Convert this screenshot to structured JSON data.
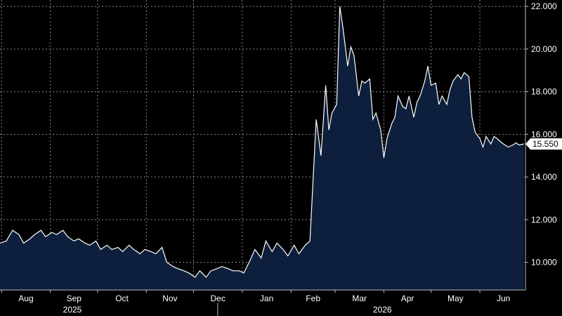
{
  "chart_data": {
    "type": "area",
    "title": "",
    "xlabel": "",
    "ylabel": "",
    "ylim": [
      8.7,
      22.3
    ],
    "yticks": [
      10.0,
      12.0,
      14.0,
      16.0,
      18.0,
      20.0,
      22.0
    ],
    "ytick_labels": [
      "10.000",
      "12.000",
      "14.000",
      "16.000",
      "18.000",
      "20.000",
      "22.000"
    ],
    "xlim": [
      "2025-07-31",
      "2026-06-30"
    ],
    "months": [
      {
        "label": "Aug",
        "date": "2025-08-01"
      },
      {
        "label": "Sep",
        "date": "2025-09-01"
      },
      {
        "label": "Oct",
        "date": "2025-10-01"
      },
      {
        "label": "Nov",
        "date": "2025-11-01"
      },
      {
        "label": "Dec",
        "date": "2025-12-01"
      },
      {
        "label": "Jan",
        "date": "2026-01-01"
      },
      {
        "label": "Feb",
        "date": "2026-02-01"
      },
      {
        "label": "Mar",
        "date": "2026-03-01"
      },
      {
        "label": "Apr",
        "date": "2026-04-01"
      },
      {
        "label": "May",
        "date": "2026-05-01"
      },
      {
        "label": "Jun",
        "date": "2026-06-01"
      }
    ],
    "years": [
      {
        "label": "2025",
        "date": "2025-09-15"
      },
      {
        "label": "2026",
        "date": "2026-03-31"
      }
    ],
    "year_divider": "2026-01-01",
    "grid": true,
    "last_value": 15.55,
    "last_label": "15.550",
    "colors": {
      "background": "#000000",
      "fill": "#0d1f3c",
      "line": "#ffffff",
      "grid": "#888888",
      "label_bg": "#ffffff"
    },
    "series": [
      {
        "x": [
          "2025-07-31",
          "2025-08-04",
          "2025-08-08",
          "2025-08-12",
          "2025-08-15",
          "2025-08-19",
          "2025-08-22",
          "2025-08-26",
          "2025-08-29",
          "2025-09-02",
          "2025-09-05",
          "2025-09-09",
          "2025-09-12",
          "2025-09-16",
          "2025-09-19",
          "2025-09-23",
          "2025-09-26",
          "2025-09-30",
          "2025-10-03",
          "2025-10-07",
          "2025-10-10",
          "2025-10-14",
          "2025-10-17",
          "2025-10-21",
          "2025-10-24",
          "2025-10-28",
          "2025-10-31",
          "2025-11-04",
          "2025-11-07",
          "2025-11-11",
          "2025-11-14",
          "2025-11-18",
          "2025-11-21",
          "2025-11-25",
          "2025-11-28",
          "2025-12-02",
          "2025-12-05",
          "2025-12-09",
          "2025-12-12",
          "2025-12-16",
          "2025-12-19",
          "2025-12-23",
          "2025-12-26",
          "2025-12-30",
          "2026-01-02",
          "2026-01-06",
          "2026-01-09",
          "2026-01-13",
          "2026-01-16",
          "2026-01-20",
          "2026-01-23",
          "2026-01-27",
          "2026-01-30",
          "2026-02-03",
          "2026-02-06",
          "2026-02-10",
          "2026-02-13",
          "2026-02-17",
          "2026-02-20",
          "2026-02-23",
          "2026-02-25",
          "2026-02-27",
          "2026-03-02",
          "2026-03-04",
          "2026-03-06",
          "2026-03-09",
          "2026-03-11",
          "2026-03-13",
          "2026-03-16",
          "2026-03-18",
          "2026-03-20",
          "2026-03-23",
          "2026-03-25",
          "2026-03-27",
          "2026-03-30",
          "2026-04-01",
          "2026-04-03",
          "2026-04-06",
          "2026-04-08",
          "2026-04-10",
          "2026-04-13",
          "2026-04-15",
          "2026-04-17",
          "2026-04-20",
          "2026-04-22",
          "2026-04-24",
          "2026-04-27",
          "2026-04-29",
          "2026-05-01",
          "2026-05-04",
          "2026-05-06",
          "2026-05-08",
          "2026-05-11",
          "2026-05-13",
          "2026-05-15",
          "2026-05-18",
          "2026-05-20",
          "2026-05-22",
          "2026-05-25",
          "2026-05-27",
          "2026-05-29",
          "2026-06-01",
          "2026-06-03",
          "2026-06-05",
          "2026-06-08",
          "2026-06-10",
          "2026-06-12",
          "2026-06-15",
          "2026-06-17",
          "2026-06-19",
          "2026-06-22",
          "2026-06-24",
          "2026-06-26",
          "2026-06-29"
        ],
        "values": [
          10.9,
          11.0,
          11.5,
          11.3,
          10.9,
          11.1,
          11.3,
          11.5,
          11.2,
          11.4,
          11.3,
          11.5,
          11.2,
          11.0,
          11.1,
          10.9,
          10.8,
          11.0,
          10.6,
          10.8,
          10.6,
          10.7,
          10.5,
          10.8,
          10.6,
          10.4,
          10.6,
          10.5,
          10.4,
          10.7,
          10.0,
          9.8,
          9.7,
          9.6,
          9.5,
          9.3,
          9.6,
          9.3,
          9.6,
          9.7,
          9.8,
          9.7,
          9.6,
          9.6,
          9.5,
          10.1,
          10.6,
          10.2,
          11.0,
          10.5,
          10.9,
          10.6,
          10.3,
          10.8,
          10.4,
          10.8,
          11.0,
          16.7,
          15.0,
          18.3,
          16.2,
          17.0,
          17.4,
          22.0,
          21.0,
          19.2,
          20.1,
          19.7,
          17.8,
          18.5,
          18.4,
          18.6,
          16.7,
          17.0,
          16.2,
          14.9,
          15.8,
          16.5,
          16.8,
          17.8,
          17.3,
          17.2,
          17.8,
          16.8,
          17.5,
          17.8,
          18.5,
          19.2,
          18.3,
          18.4,
          17.4,
          17.8,
          17.4,
          18.1,
          18.5,
          18.8,
          18.6,
          18.9,
          18.7,
          16.8,
          16.1,
          15.8,
          15.4,
          15.9,
          15.55,
          15.9,
          15.8,
          15.6,
          15.5,
          15.4,
          15.5,
          15.6,
          15.5,
          15.55
        ]
      }
    ]
  }
}
